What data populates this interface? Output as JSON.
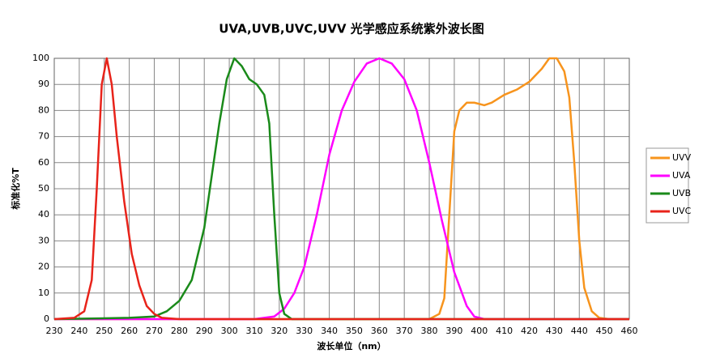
{
  "chart_data": {
    "type": "line",
    "title": "UVA,UVB,UVC,UVV 光学感应系统紫外波长图",
    "x_label": "波长单位（nm）",
    "y_label": "标准化%T",
    "xlim": [
      230,
      460
    ],
    "xticks": [
      230,
      240,
      250,
      260,
      270,
      280,
      290,
      300,
      310,
      320,
      330,
      340,
      350,
      360,
      370,
      380,
      390,
      400,
      410,
      420,
      430,
      440,
      450,
      460
    ],
    "ylim": [
      0,
      100
    ],
    "yticks": [
      0,
      10,
      20,
      30,
      40,
      50,
      60,
      70,
      80,
      90,
      100
    ],
    "grid": true,
    "legend": "right",
    "series": [
      {
        "name": "UVV",
        "color": "#f7941d",
        "x": [
          230,
          380,
          384,
          386,
          388,
          390,
          392,
          395,
          398,
          402,
          405,
          410,
          415,
          420,
          425,
          428,
          431,
          434,
          436,
          438,
          440,
          442,
          445,
          448,
          452,
          460
        ],
        "values": [
          0,
          0,
          2,
          8,
          40,
          72,
          80,
          83,
          83,
          82,
          83,
          86,
          88,
          91,
          96,
          100,
          100,
          95,
          85,
          60,
          30,
          12,
          3,
          0.5,
          0,
          0
        ]
      },
      {
        "name": "UVA",
        "color": "#ff00ff",
        "x": [
          230,
          310,
          318,
          322,
          326,
          330,
          335,
          340,
          345,
          350,
          355,
          360,
          365,
          370,
          375,
          380,
          385,
          390,
          395,
          398,
          402,
          460
        ],
        "values": [
          0,
          0,
          1,
          4,
          10,
          20,
          40,
          63,
          80,
          91,
          98,
          100,
          98,
          92,
          80,
          60,
          38,
          18,
          5,
          1,
          0,
          0
        ]
      },
      {
        "name": "UVB",
        "color": "#1a8a1a",
        "x": [
          230,
          260,
          270,
          275,
          280,
          285,
          290,
          293,
          296,
          299,
          302,
          305,
          308,
          311,
          314,
          316,
          318,
          320,
          322,
          325,
          460
        ],
        "values": [
          0,
          0.5,
          1,
          3,
          7,
          15,
          35,
          55,
          75,
          92,
          100,
          97,
          92,
          90,
          86,
          75,
          40,
          10,
          2,
          0,
          0
        ]
      },
      {
        "name": "UVC",
        "color": "#e8231a",
        "x": [
          230,
          238,
          242,
          245,
          247,
          249,
          251,
          253,
          255,
          258,
          261,
          264,
          267,
          270,
          273,
          280,
          460
        ],
        "values": [
          0,
          0.5,
          3,
          15,
          50,
          90,
          100,
          90,
          70,
          45,
          25,
          13,
          5,
          2,
          0.5,
          0,
          0
        ]
      }
    ]
  }
}
